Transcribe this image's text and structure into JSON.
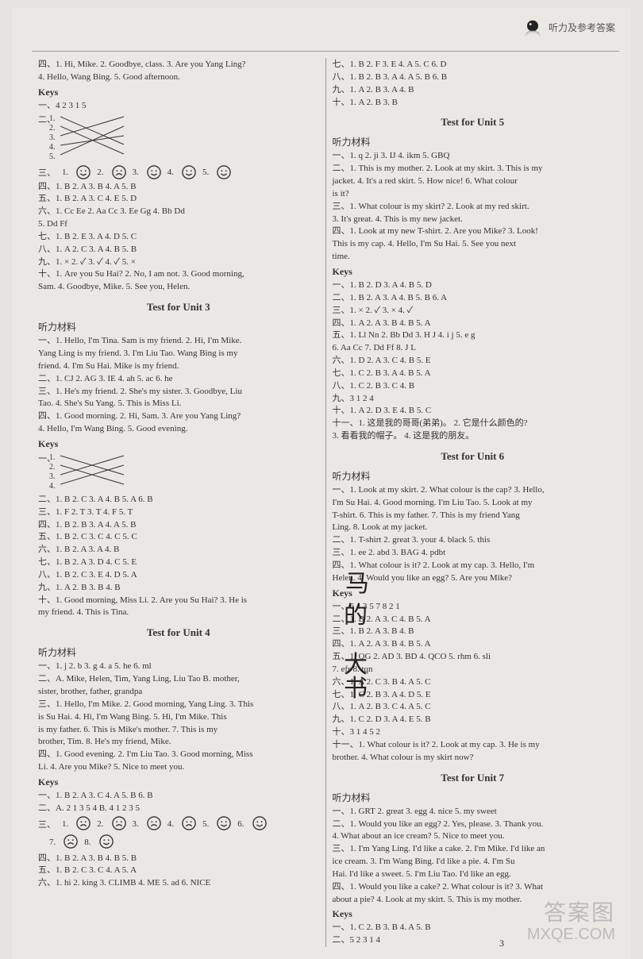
{
  "header": {
    "label": "听力及参考答案"
  },
  "left": {
    "pre": [
      "四、1. Hi, Mike.  2. Goodbye, class.  3. Are you Yang Ling?",
      "    4. Hello, Wang Bing.  5. Good afternoon."
    ],
    "keys1_label": "Keys",
    "keys1_seq": "一、4 2 3 1 5",
    "cross_nums": [
      "1.",
      "2.",
      "3.",
      "4.",
      "5."
    ],
    "faces_row": [
      {
        "n": "1.",
        "t": "smile"
      },
      {
        "n": "2.",
        "t": "sad"
      },
      {
        "n": "3.",
        "t": "smile"
      },
      {
        "n": "4.",
        "t": "smile"
      },
      {
        "n": "5.",
        "t": "smile"
      }
    ],
    "after_faces": [
      "四、1. B  2. A  3. B  4. A  5. B",
      "五、1. B  2. A  3. C  4. E  5. D",
      "六、1. Cc  Ee  2. Aa  Cc  3. Ee  Gg  4. Bb  Dd",
      "    5. Dd  Ff",
      "七、1. B  2. E  3. A  4. D  5. C",
      "八、1. A  2. C  3. A  4. B  5. B",
      "九、1. ×  2. ✓  3. ✓  4. ✓  5. ×",
      "十、1. Are you Su Hai?  2. No, I am not.  3. Good morning,",
      "    Sam.  4. Goodbye, Mike.  5. See you, Helen."
    ],
    "unit3_title": "Test for Unit 3",
    "unit3_listen_label": "听力材料",
    "unit3_listen": [
      "一、1. Hello, I'm Tina. Sam is my friend.  2. Hi, I'm Mike.",
      "    Yang Ling is my friend.  3. I'm Liu Tao. Wang Bing is my",
      "    friend.  4. I'm Su Hai. Mike is my friend.",
      "二、1. CJ  2. AG  3. IE  4. ah  5. ac  6. he",
      "三、1. He's my friend.  2. She's my sister.  3. Goodbye, Liu",
      "    Tao.  4. She's Su Yang.  5. This is Miss Li.",
      "四、1. Good morning.  2. Hi, Sam.  3. Are you Yang Ling?",
      "    4. Hello, I'm Wang Bing.  5. Good evening."
    ],
    "unit3_keys_label": "Keys",
    "unit3_cross_nums": [
      "1.",
      "2.",
      "3.",
      "4."
    ],
    "unit3_keys": [
      "二、1. B  2. C  3. A  4. B  5. A  6. B",
      "三、1. F  2. T  3. T  4. F  5. T",
      "四、1. B  2. B  3. A  4. A  5. B",
      "五、1. B  2. C  3. C  4. C  5. C",
      "六、1. B  2. A  3. A  4. B",
      "七、1. B  2. A  3. D  4. C  5. E",
      "八、1. B  2. C  3. E  4. D  5. A",
      "九、1. A  2. B  3. B  4. B",
      "十、1. Good morning, Miss Li.  2. Are you Su Hai?  3. He is",
      "    my friend.  4. This is Tina."
    ],
    "unit4_title": "Test for Unit 4",
    "unit4_listen_label": "听力材料",
    "unit4_listen": [
      "一、1. j  2. b  3. g  4. a  5. he  6. ml",
      "二、A. Mike, Helen, Tim, Yang Ling, Liu Tao  B. mother,",
      "    sister, brother, father, grandpa",
      "三、1. Hello, I'm Mike.  2. Good morning, Yang Ling.  3. This",
      "    is Su Hai.  4. Hi, I'm Wang Bing.  5. Hi, I'm Mike. This",
      "    is my father.  6. This is Mike's mother.  7. This is my",
      "    brother, Tim.  8. He's my friend, Mike.",
      "四、1. Good evening.  2. I'm Liu Tao.  3. Good morning, Miss",
      "    Li.  4. Are you Mike?  5. Nice to meet you."
    ],
    "unit4_keys_label": "Keys",
    "unit4_keys_top": [
      "一、1. B  2. A  3. C  4. A  5. B  6. B",
      "二、A. 2 1 3 5 4  B. 4 1 2 3 5"
    ],
    "unit4_faces": [
      {
        "n": "1.",
        "t": "sad"
      },
      {
        "n": "2.",
        "t": "sad"
      },
      {
        "n": "3.",
        "t": "sad"
      },
      {
        "n": "4.",
        "t": "sad"
      },
      {
        "n": "5.",
        "t": "smile"
      },
      {
        "n": "6.",
        "t": "smile"
      }
    ],
    "unit4_faces2": [
      {
        "n": "7.",
        "t": "sad"
      },
      {
        "n": "8.",
        "t": "smile"
      }
    ],
    "unit4_keys_bottom": [
      "四、1. B  2. A  3. B  4. B  5. B",
      "五、1. B  2. C  3. C  4. A  5. A",
      "六、1. hi  2. king  3. CLIMB  4. ME  5. ad  6. NICE"
    ]
  },
  "right": {
    "pre": [
      "七、1. B  2. F  3. E  4. A  5. C  6. D",
      "八、1. B  2. B  3. A  4. A  5. B  6. B",
      "九、1. A  2. B  3. A  4. B",
      "十、1. A  2. B  3. B"
    ],
    "unit5_title": "Test for Unit 5",
    "unit5_listen_label": "听力材料",
    "unit5_listen": [
      "一、1. q  2. ji  3. IJ  4. ikm  5. GBQ",
      "二、1. This is my mother.  2. Look at my skirt.  3. This is my",
      "    jacket.  4. It's a red skirt.  5. How nice!  6. What colour",
      "    is it?",
      "三、1. What colour is my skirt?  2. Look at my red skirt.",
      "    3. It's great.  4. This is my new jacket.",
      "四、1. Look at my new T-shirt.  2. Are you Mike?  3. Look!",
      "    This is my cap.  4. Hello, I'm Su Hai.  5. See you next",
      "    time."
    ],
    "unit5_keys_label": "Keys",
    "unit5_keys": [
      "一、1. B  2. D  3. A  4. B  5. D",
      "二、1. B  2. A  3. A  4. B  5. B  6. A",
      "三、1. ×  2. ✓  3. ×  4. ✓",
      "四、1. A  2. A  3. B  4. B  5. A",
      "五、1. Ll  Nn  2. Bb  Dd  3. H  J  4.  i  j  5. e  g",
      "    6. Aa  Cc  7. Dd  Ff  8. J  L",
      "六、1. D  2. A  3. C  4. B  5. E",
      "七、1. C  2. B  3. A  4. B  5. A",
      "八、1. C  2. B  3. C  4. B",
      "九、3 1 2 4",
      "十、1. A  2. D  3. E  4. B  5. C",
      "十一、1. 这是我的哥哥(弟弟)。 2. 它是什么颜色的?",
      "      3. 看看我的帽子。 4. 这是我的朋友。"
    ],
    "unit6_title": "Test for Unit 6",
    "unit6_listen_label": "听力材料",
    "unit6_listen": [
      "一、1. Look at my skirt.  2. What colour is the cap?  3. Hello,",
      "    I'm Su Hai.  4. Good morning. I'm Liu Tao.  5. Look at my",
      "    T-shirt.  6. This is my father.  7. This is my friend Yang",
      "    Ling.  8. Look at my jacket.",
      "二、1. T-shirt  2. great  3. your  4. black  5. this",
      "三、1. ee  2. abd  3. BAG  4. pdbt",
      "四、1. What colour is it?  2. Look at my cap.  3. Hello, I'm",
      "    Helen.  4. Would you like an egg?  5. Are you Mike?"
    ],
    "unit6_keys_label": "Keys",
    "unit6_keys": [
      "一、6 4 3 5 7 8 2 1",
      "二、1. B  2. A  3. C  4. B  5. A",
      "三、1. B  2. A  3. B  4. B",
      "四、1. A  2. A  3. B  4. B  5. A",
      "五、1. QG  2. AD  3. BD  4. QCO  5. rhm  6. sli",
      "    7. efr  8. tqn",
      "六、1. A  2. C  3. B  4. A  5. C",
      "七、1. C  2. B  3. A  4. D  5. E",
      "八、1. A  2. B  3. C  4. A  5. C",
      "九、1. C  2. D  3. A  4. E  5. B",
      "十、3 1 4 5 2",
      "十一、1. What colour is it?  2. Look at my cap.  3. He is my",
      "      brother.  4. What colour is my skirt now?"
    ],
    "unit7_title": "Test for Unit 7",
    "unit7_listen_label": "听力材料",
    "unit7_listen": [
      "一、1. GRT  2. great  3. egg  4. nice  5. my sweet",
      "二、1. Would you like an egg?  2. Yes, please.  3. Thank you.",
      "    4. What about an ice cream?  5. Nice to meet you.",
      "三、1. I'm Yang Ling. I'd like a cake.  2. I'm Mike. I'd like an",
      "    ice cream.  3. I'm Wang Bing. I'd like a pie.  4. I'm Su",
      "    Hai. I'd like a sweet.  5. I'm Liu Tao. I'd like an egg.",
      "四、1. Would you like a cake?  2. What colour is it?  3. What",
      "    about a pie?  4. Look at my skirt.  5. This is my mother."
    ],
    "unit7_keys_label": "Keys",
    "unit7_keys": [
      "一、1. C  2. B  3. B  4. A  5. B",
      "二、5 2 3 1 4"
    ]
  },
  "watermark": {
    "top": "答案图",
    "bottom": "MXQE.COM"
  },
  "page_num": "3"
}
